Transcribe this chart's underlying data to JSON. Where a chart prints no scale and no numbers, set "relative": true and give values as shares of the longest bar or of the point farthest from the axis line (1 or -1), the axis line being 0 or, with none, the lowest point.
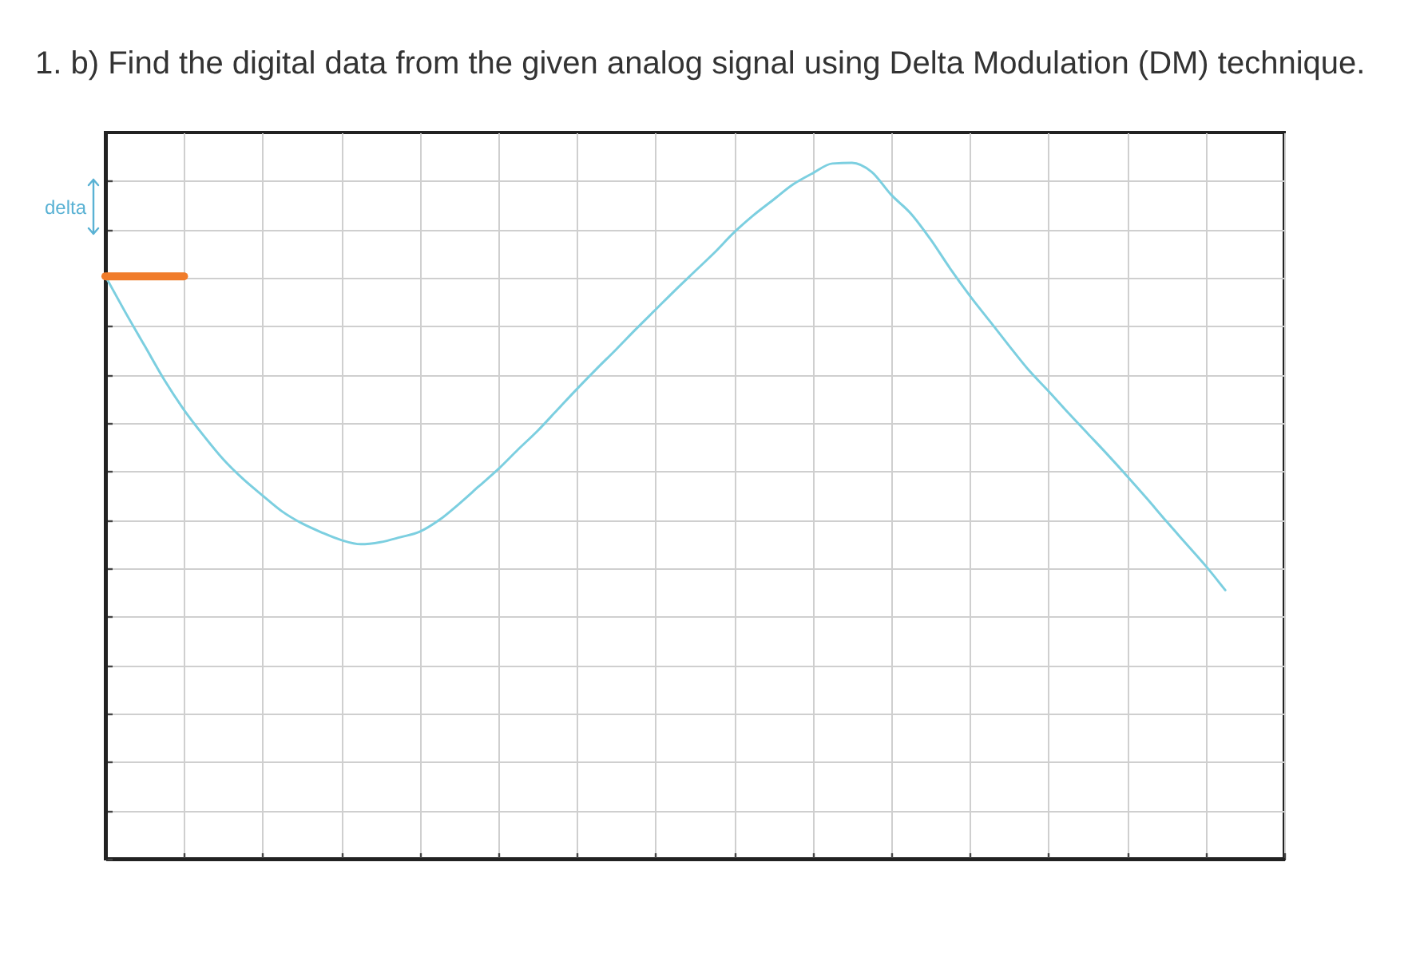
{
  "chart_data": {
    "type": "line",
    "title": "1. b) Find the digital data from the given analog signal using Delta Modulation (DM) technique.",
    "annotations": [
      "delta"
    ],
    "relative": true,
    "categories": [
      null,
      null,
      null,
      null,
      null,
      null,
      null,
      null,
      null,
      null,
      null,
      null,
      null,
      null,
      null,
      null,
      null,
      null,
      null,
      null,
      null,
      null,
      null,
      null,
      null,
      null,
      null,
      null,
      null,
      null,
      null,
      null,
      null,
      null,
      null,
      null,
      null,
      null,
      null,
      null,
      null,
      null,
      null,
      null,
      null,
      null,
      null,
      null,
      null,
      null,
      null,
      null,
      null,
      null,
      null,
      null,
      null,
      null,
      null,
      null,
      null
    ],
    "series": [
      {
        "color": "#7ccfe0",
        "values": [
          0.837,
          0.786,
          0.737,
          0.688,
          0.645,
          0.608,
          0.574,
          0.546,
          0.522,
          0.499,
          0.482,
          0.469,
          0.458,
          0.452,
          0.455,
          0.462,
          0.47,
          0.487,
          0.51,
          0.535,
          0.56,
          0.588,
          0.615,
          0.645,
          0.675,
          0.704,
          0.732,
          0.761,
          0.789,
          0.817,
          0.844,
          0.871,
          0.9,
          0.925,
          0.947,
          0.969,
          0.985,
          0.999,
          1.0,
          0.987,
          0.954,
          0.927,
          0.89,
          0.848,
          0.809,
          0.773,
          0.737,
          0.702,
          0.672,
          0.641,
          0.611,
          0.581,
          0.55,
          0.518,
          0.485,
          0.453,
          0.421,
          0.386,
          null,
          null,
          null
        ]
      },
      {
        "type": "step",
        "color": "#f07c2b",
        "values": [
          0.837,
          0.837,
          0.837,
          0.837,
          0.837,
          null,
          null,
          null,
          null,
          null,
          null,
          null,
          null,
          null,
          null,
          null,
          null,
          null,
          null,
          null,
          null,
          null,
          null,
          null,
          null,
          null,
          null,
          null,
          null,
          null,
          null,
          null,
          null,
          null,
          null,
          null,
          null,
          null,
          null,
          null,
          null,
          null,
          null,
          null,
          null,
          null,
          null,
          null,
          null,
          null,
          null,
          null,
          null,
          null,
          null,
          null,
          null,
          null,
          null,
          null,
          null
        ]
      }
    ],
    "grid": true
  }
}
